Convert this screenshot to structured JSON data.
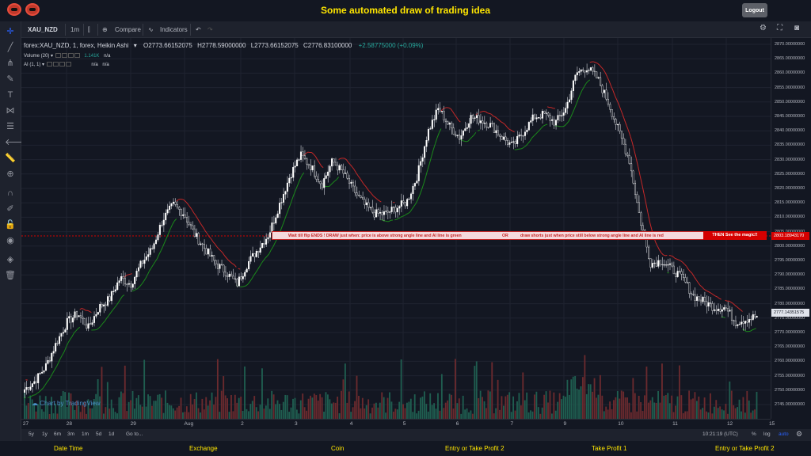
{
  "page": {
    "title": "Some automated draw of trading idea",
    "logout_label": "Logout"
  },
  "toolbar": {
    "symbol": "XAU_NZD",
    "interval": "1m",
    "compare_label": "Compare",
    "indicators_label": "Indicators"
  },
  "legend": {
    "series_title": "forex:XAU_NZD, 1, forex, Heikin Ashi",
    "open": "O2773.66152075",
    "high": "H2778.59000000",
    "low": "L2773.66152075",
    "close": "C2776.83100000",
    "change": "+2.58775000 (+0.09%)",
    "volume_label": "Volume (20)",
    "volume_value": "1.141K",
    "volume_na": "n/a",
    "ai_label": "AI (1, 1)",
    "ai_na1": "n/a",
    "ai_na2": "n/a"
  },
  "annotation": {
    "part1": "Wait till flip ENDS  !   DRAW just when:  price is above strong angle line and AI line is green",
    "part2": "OR",
    "part3": "draw shorts just when price still below strong angle line and AI line is red",
    "part4": "THEN See the magic!!"
  },
  "price_labels": {
    "red": "2803.18943170",
    "current": "2777.14351575"
  },
  "price_ticks": [
    "2870.00000000",
    "2865.00000000",
    "2860.00000000",
    "2855.00000000",
    "2850.00000000",
    "2845.00000000",
    "2840.00000000",
    "2835.00000000",
    "2830.00000000",
    "2825.00000000",
    "2820.00000000",
    "2815.00000000",
    "2810.00000000",
    "2805.00000000",
    "2800.00000000",
    "2795.00000000",
    "2790.00000000",
    "2785.00000000",
    "2780.00000000",
    "2775.00000000",
    "2770.00000000",
    "2765.00000000",
    "2760.00000000",
    "2755.00000000",
    "2750.00000000",
    "2745.00000000"
  ],
  "time_ticks": [
    "27",
    "28",
    "29",
    "Aug",
    "2",
    "3",
    "4",
    "5",
    "6",
    "7",
    "9",
    "10",
    "11",
    "12",
    "15"
  ],
  "bottom_bar": {
    "ranges": [
      "5y",
      "1y",
      "6m",
      "3m",
      "1m",
      "5d",
      "1d"
    ],
    "goto_label": "Go to...",
    "clock": "10:21:19 (UTC)",
    "percent": "%",
    "log": "log",
    "auto": "auto"
  },
  "watermark": "Chart by TradingView",
  "footer": [
    "Date Time",
    "Exchange",
    "Coin",
    "Entry or Take Profit 2",
    "Take Profit 1",
    "Entry or Take Profit 2"
  ],
  "colors": {
    "accent": "#ffe600",
    "up": "#26a69a",
    "down": "#ef5350",
    "ai_green": "#1b8a1b",
    "ai_red": "#c62828"
  },
  "chart_data": {
    "type": "candlestick",
    "symbol": "XAU_NZD",
    "style": "Heikin Ashi",
    "ylim": [
      2742,
      2872
    ],
    "x_labels": [
      "27",
      "28",
      "29",
      "Aug",
      "2",
      "3",
      "4",
      "5",
      "6",
      "7",
      "9",
      "10",
      "11",
      "12",
      "15"
    ],
    "close_path": [
      2752,
      2755,
      2760,
      2768,
      2775,
      2778,
      2773,
      2780,
      2783,
      2790,
      2788,
      2795,
      2800,
      2810,
      2815,
      2812,
      2805,
      2800,
      2795,
      2792,
      2788,
      2795,
      2800,
      2805,
      2815,
      2825,
      2832,
      2828,
      2822,
      2830,
      2826,
      2820,
      2815,
      2812,
      2812,
      2814,
      2816,
      2825,
      2840,
      2848,
      2842,
      2838,
      2845,
      2844,
      2842,
      2838,
      2835,
      2840,
      2845,
      2846,
      2843,
      2848,
      2860,
      2862,
      2858,
      2850,
      2840,
      2830,
      2810,
      2795,
      2796,
      2793,
      2790,
      2784,
      2782,
      2780,
      2780,
      2775,
      2776,
      2777
    ]
  }
}
